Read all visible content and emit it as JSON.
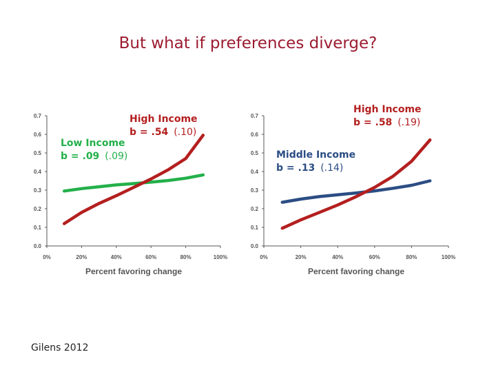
{
  "slide": {
    "title": "But what if preferences diverge?",
    "citation": "Gilens 2012"
  },
  "colors": {
    "title": "#9b1b30",
    "high_income": "#b41f1f",
    "low_income": "#23b04a",
    "middle_income": "#2b4d84",
    "axis": "#555555"
  },
  "chart_data": [
    {
      "type": "line",
      "xlabel": "Percent favoring change",
      "ylabel": "",
      "xlim": [
        0,
        100
      ],
      "ylim": [
        0,
        0.7
      ],
      "x_ticks": [
        "0%",
        "20%",
        "40%",
        "60%",
        "80%",
        "100%"
      ],
      "y_ticks": [
        "0.0",
        "0.1",
        "0.2",
        "0.3",
        "0.4",
        "0.5",
        "0.6",
        "0.7"
      ],
      "annotations": [
        {
          "series": "High Income",
          "label": "High Income",
          "coef": "b = .54",
          "se": "(.10)"
        },
        {
          "series": "Low Income",
          "label": "Low Income",
          "coef": "b = .09",
          "se": "(.09)"
        }
      ],
      "series": [
        {
          "name": "Low Income",
          "color": "#23b04a",
          "x": [
            10,
            20,
            30,
            40,
            50,
            60,
            70,
            80,
            90
          ],
          "values": [
            0.295,
            0.308,
            0.318,
            0.328,
            0.335,
            0.343,
            0.352,
            0.364,
            0.382
          ]
        },
        {
          "name": "High Income",
          "color": "#b41f1f",
          "x": [
            10,
            20,
            30,
            40,
            50,
            60,
            70,
            80,
            90
          ],
          "values": [
            0.12,
            0.18,
            0.228,
            0.27,
            0.315,
            0.36,
            0.41,
            0.47,
            0.595
          ]
        }
      ]
    },
    {
      "type": "line",
      "xlabel": "Percent favoring change",
      "ylabel": "",
      "xlim": [
        0,
        100
      ],
      "ylim": [
        0,
        0.7
      ],
      "x_ticks": [
        "0%",
        "20%",
        "40%",
        "60%",
        "80%",
        "100%"
      ],
      "y_ticks": [
        "0.0",
        "0.1",
        "0.2",
        "0.3",
        "0.4",
        "0.5",
        "0.6",
        "0.7"
      ],
      "annotations": [
        {
          "series": "High Income",
          "label": "High Income",
          "coef": "b = .58",
          "se": "(.19)"
        },
        {
          "series": "Middle Income",
          "label": "Middle Income",
          "coef": "b = .13",
          "se": "(.14)"
        }
      ],
      "series": [
        {
          "name": "Middle Income",
          "color": "#2b4d84",
          "x": [
            10,
            20,
            30,
            40,
            50,
            60,
            70,
            80,
            90
          ],
          "values": [
            0.235,
            0.252,
            0.265,
            0.275,
            0.285,
            0.296,
            0.31,
            0.326,
            0.35
          ]
        },
        {
          "name": "High Income",
          "color": "#b41f1f",
          "x": [
            10,
            20,
            30,
            40,
            50,
            60,
            70,
            80,
            90
          ],
          "values": [
            0.095,
            0.14,
            0.18,
            0.22,
            0.265,
            0.315,
            0.375,
            0.455,
            0.57
          ]
        }
      ]
    }
  ]
}
